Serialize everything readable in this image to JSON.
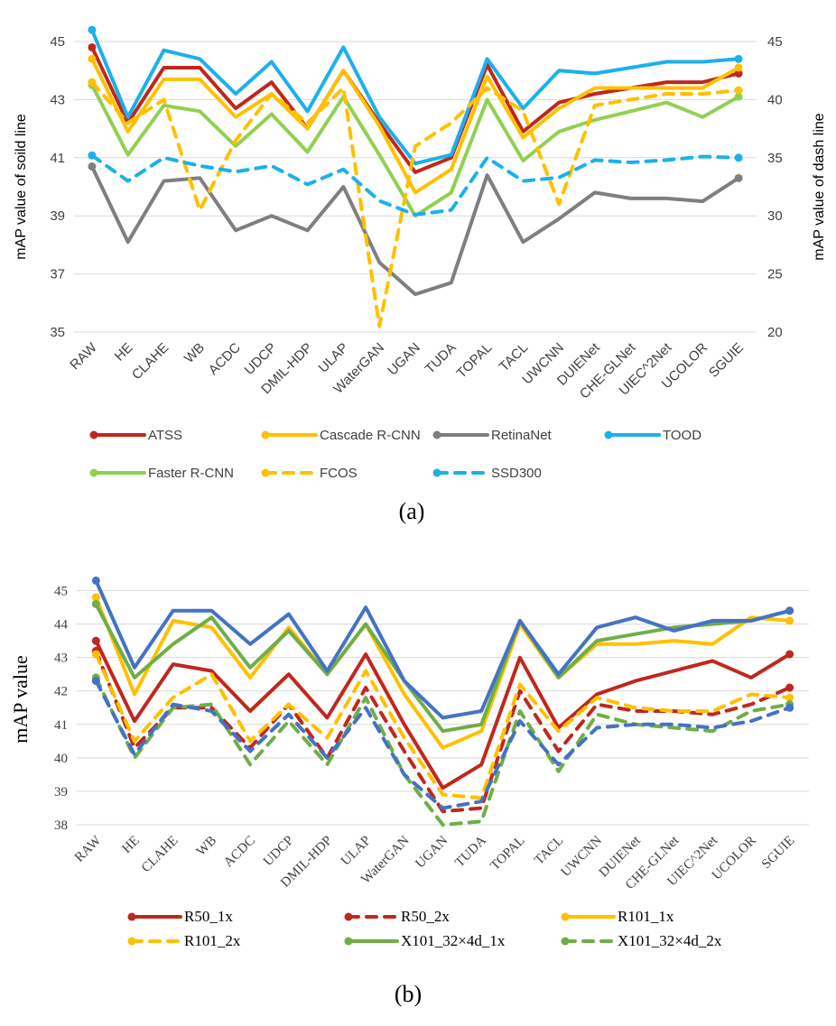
{
  "chart_data": [
    {
      "type": "line",
      "panel_label": "(a)",
      "categories": [
        "RAW",
        "HE",
        "CLAHE",
        "WB",
        "ACDC",
        "UDCP",
        "DMIL-HDP",
        "ULAP",
        "WaterGAN",
        "UGAN",
        "TUDA",
        "TOPAL",
        "TACL",
        "UWCNN",
        "DUIENet",
        "CHE-GLNet",
        "UIEC^2Net",
        "UCOLOR",
        "SGUIE"
      ],
      "ylabel": "mAP value of soild line",
      "ylabel_right": "mAP value of dash line",
      "ylim": [
        35,
        45
      ],
      "yticks": [
        35,
        37,
        39,
        41,
        43,
        45
      ],
      "ylim_right": [
        20,
        45
      ],
      "yticks_right": [
        20,
        25,
        30,
        35,
        40,
        45
      ],
      "grid": true,
      "legend_position": "bottom",
      "series": [
        {
          "name": "ATSS",
          "axis": "left",
          "style": "solid",
          "color": "#c0271d",
          "values": [
            44.8,
            42.2,
            44.1,
            44.1,
            42.7,
            43.6,
            42.0,
            44.0,
            42.2,
            40.5,
            41.0,
            44.2,
            41.9,
            42.9,
            43.2,
            43.4,
            43.6,
            43.6,
            43.9
          ]
        },
        {
          "name": "Cascade R-CNN",
          "axis": "left",
          "style": "solid",
          "color": "#ffc000",
          "values": [
            44.4,
            41.9,
            43.7,
            43.7,
            42.4,
            43.2,
            42.0,
            44.0,
            42.1,
            39.8,
            40.6,
            43.8,
            41.7,
            42.7,
            43.4,
            43.4,
            43.4,
            43.4,
            44.1
          ]
        },
        {
          "name": "RetinaNet",
          "axis": "left",
          "style": "solid",
          "color": "#7f7f7f",
          "values": [
            40.7,
            38.1,
            40.2,
            40.3,
            38.5,
            39.0,
            38.5,
            40.0,
            37.4,
            36.3,
            36.7,
            40.4,
            38.1,
            38.9,
            39.8,
            39.6,
            39.6,
            39.5,
            40.3
          ]
        },
        {
          "name": "TOOD",
          "axis": "left",
          "style": "solid",
          "color": "#1cb0ec",
          "values": [
            45.4,
            42.4,
            44.7,
            44.4,
            43.2,
            44.3,
            42.6,
            44.8,
            42.4,
            40.8,
            41.1,
            44.4,
            42.7,
            44.0,
            43.9,
            44.1,
            44.3,
            44.3,
            44.4
          ]
        },
        {
          "name": "Faster R-CNN",
          "axis": "left",
          "style": "solid",
          "color": "#92d050",
          "values": [
            43.5,
            41.1,
            42.8,
            42.6,
            41.4,
            42.5,
            41.2,
            43.1,
            41.1,
            39.0,
            39.8,
            43.0,
            40.9,
            41.9,
            42.3,
            42.6,
            42.9,
            42.4,
            43.1
          ]
        },
        {
          "name": "FCOS",
          "axis": "right",
          "style": "dash",
          "color": "#ffc000",
          "values": [
            41.5,
            38.0,
            40.0,
            30.5,
            36.5,
            40.5,
            38.0,
            41.0,
            20.5,
            36.0,
            38.0,
            41.0,
            39.0,
            31.0,
            39.5,
            40.0,
            40.5,
            40.5,
            40.8
          ]
        },
        {
          "name": "SSD300",
          "axis": "right",
          "style": "dash",
          "color": "#1cb0ec",
          "values": [
            35.2,
            33.0,
            35.0,
            34.3,
            33.8,
            34.3,
            32.7,
            34.0,
            31.3,
            30.1,
            30.5,
            35.0,
            33.0,
            33.3,
            34.8,
            34.6,
            34.8,
            35.1,
            35.0
          ]
        }
      ]
    },
    {
      "type": "line",
      "panel_label": "(b)",
      "categories": [
        "RAW",
        "HE",
        "CLAHE",
        "WB",
        "ACDC",
        "UDCP",
        "DMIL-HDP",
        "ULAP",
        "WaterGAN",
        "UGAN",
        "TUDA",
        "TOPAL",
        "TACL",
        "UWCNN",
        "DUIENet",
        "CHE-GLNet",
        "UIEC^2Net",
        "UCOLOR",
        "SGUIE"
      ],
      "ylabel": "mAP value",
      "ylim": [
        38,
        45.5
      ],
      "yticks": [
        38,
        39,
        40,
        41,
        42,
        43,
        44,
        45
      ],
      "grid": true,
      "legend_position": "bottom",
      "series": [
        {
          "name": "R50_1x",
          "style": "solid",
          "color": "#c0271d",
          "values": [
            43.5,
            41.1,
            42.8,
            42.6,
            41.4,
            42.5,
            41.2,
            43.1,
            41.0,
            39.1,
            39.8,
            43.0,
            40.9,
            41.9,
            42.3,
            42.6,
            42.9,
            42.4,
            43.1
          ]
        },
        {
          "name": "R50_2x",
          "style": "dash",
          "color": "#c0271d",
          "values": [
            43.2,
            40.3,
            41.5,
            41.5,
            40.3,
            41.6,
            40.0,
            42.1,
            40.2,
            38.4,
            38.5,
            42.0,
            40.2,
            41.6,
            41.4,
            41.4,
            41.3,
            41.6,
            42.1
          ]
        },
        {
          "name": "R101_1x",
          "style": "solid",
          "color": "#ffc000",
          "values": [
            44.8,
            41.9,
            44.1,
            43.9,
            42.4,
            43.9,
            42.5,
            44.0,
            41.9,
            40.3,
            40.8,
            44.0,
            42.4,
            43.4,
            43.4,
            43.5,
            43.4,
            44.2,
            44.1
          ]
        },
        {
          "name": "R101_2x",
          "style": "dash",
          "color": "#ffc000",
          "values": [
            43.1,
            40.5,
            41.8,
            42.5,
            40.5,
            41.6,
            40.6,
            42.6,
            40.6,
            38.9,
            38.8,
            42.2,
            40.8,
            41.8,
            41.5,
            41.4,
            41.4,
            41.9,
            41.8
          ]
        },
        {
          "name": "X101_32×4d_1x",
          "style": "solid",
          "color": "#70ad47",
          "values": [
            44.6,
            42.4,
            43.4,
            44.2,
            42.7,
            43.8,
            42.5,
            44.0,
            42.3,
            40.8,
            41.0,
            44.1,
            42.4,
            43.5,
            43.7,
            43.9,
            44.0,
            44.1,
            44.4
          ]
        },
        {
          "name": "X101_32×4d_2x",
          "style": "dash",
          "color": "#70ad47",
          "values": [
            42.4,
            40.0,
            41.5,
            41.6,
            39.8,
            41.1,
            39.8,
            41.8,
            39.5,
            38.0,
            38.1,
            41.4,
            39.6,
            41.3,
            41.0,
            40.9,
            40.8,
            41.4,
            41.6
          ]
        },
        {
          "name": "",
          "style": "solid",
          "color": "#4472c4",
          "values": [
            45.3,
            42.7,
            44.4,
            44.4,
            43.4,
            44.3,
            42.6,
            44.5,
            42.3,
            41.2,
            41.4,
            44.1,
            42.5,
            43.9,
            44.2,
            43.8,
            44.1,
            44.1,
            44.4
          ]
        },
        {
          "name": "",
          "style": "dash",
          "color": "#4472c4",
          "values": [
            42.3,
            40.1,
            41.6,
            41.4,
            40.2,
            41.3,
            40.0,
            41.5,
            39.5,
            38.5,
            38.7,
            41.1,
            39.8,
            40.9,
            41.0,
            41.0,
            40.9,
            41.1,
            41.5
          ]
        }
      ]
    }
  ]
}
